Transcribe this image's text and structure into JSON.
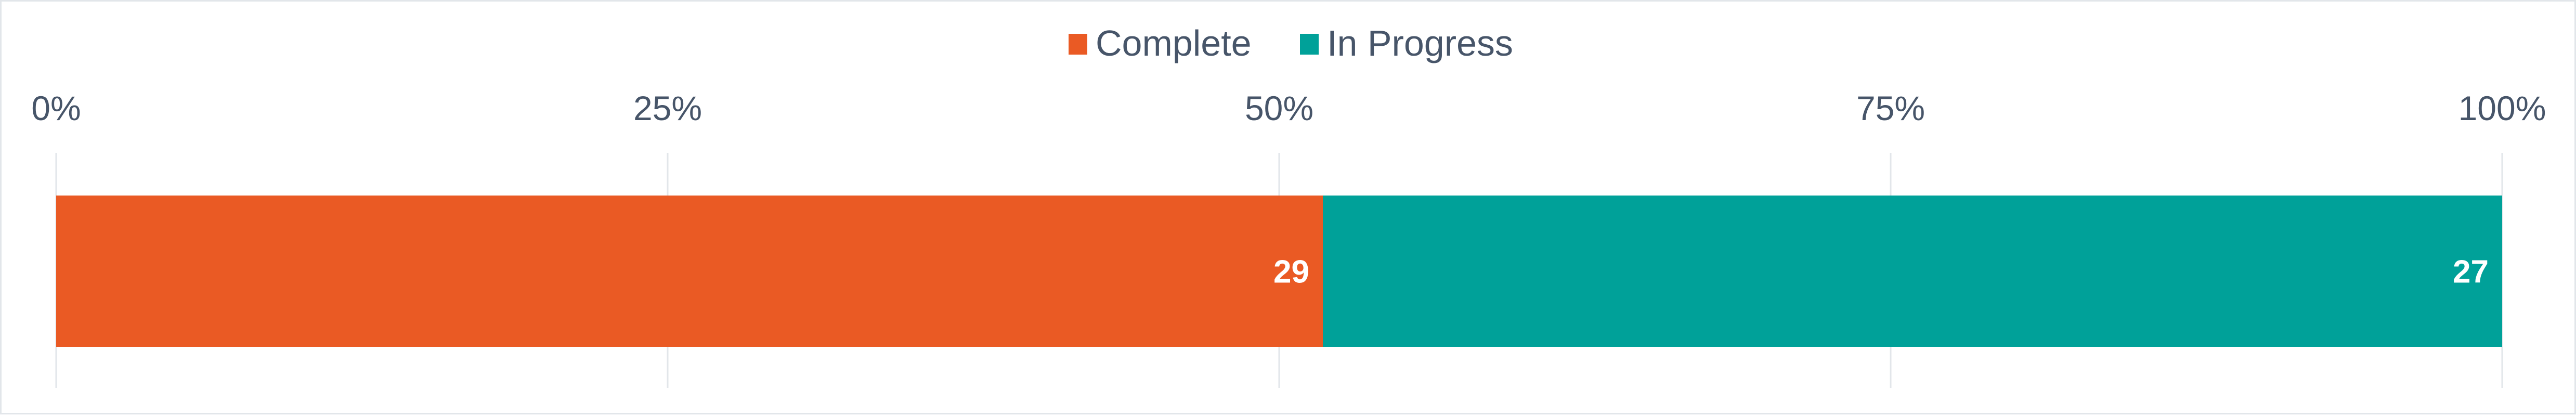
{
  "chart_data": {
    "type": "bar",
    "orientation": "horizontal",
    "stacked": "percent",
    "categories": [
      ""
    ],
    "series": [
      {
        "name": "Complete",
        "values": [
          29
        ],
        "color": "#EA5A24"
      },
      {
        "name": "In Progress",
        "values": [
          27
        ],
        "color": "#00A199"
      }
    ],
    "xlim": [
      0,
      100
    ],
    "xticks": [
      0,
      25,
      50,
      75,
      100
    ],
    "xtick_labels": [
      "0%",
      "25%",
      "50%",
      "75%",
      "100%"
    ],
    "axis_position": "top",
    "grid": true,
    "legend": "top-center",
    "data_labels": [
      "29",
      "27"
    ],
    "text_color": "#475569",
    "grid_color": "#e2e6ea"
  }
}
